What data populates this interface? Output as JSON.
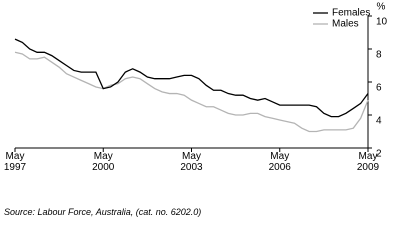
{
  "chart_data": {
    "type": "line",
    "y_label": "%",
    "categories": [
      "May 1997",
      null,
      null,
      null,
      null,
      null,
      null,
      null,
      null,
      null,
      null,
      null,
      "May 2000",
      null,
      null,
      null,
      null,
      null,
      null,
      null,
      null,
      null,
      null,
      null,
      "May 2003",
      null,
      null,
      null,
      null,
      null,
      null,
      null,
      null,
      null,
      null,
      null,
      "May 2006",
      null,
      null,
      null,
      null,
      null,
      null,
      null,
      null,
      null,
      null,
      null,
      "May 2009"
    ],
    "series": [
      {
        "name": "Females",
        "color": "#000000",
        "values": [
          8.6,
          8.4,
          8.0,
          7.8,
          7.8,
          7.6,
          7.3,
          7.0,
          6.7,
          6.6,
          6.6,
          6.6,
          5.6,
          5.7,
          6.0,
          6.6,
          6.8,
          6.6,
          6.3,
          6.2,
          6.2,
          6.2,
          6.3,
          6.4,
          6.4,
          6.2,
          5.8,
          5.5,
          5.5,
          5.3,
          5.2,
          5.2,
          5.0,
          4.9,
          5.0,
          4.8,
          4.6,
          4.6,
          4.6,
          4.6,
          4.6,
          4.5,
          4.1,
          3.9,
          3.9,
          4.1,
          4.4,
          4.7,
          5.3
        ]
      },
      {
        "name": "Males",
        "color": "#b4b4b4",
        "values": [
          7.8,
          7.7,
          7.4,
          7.4,
          7.5,
          7.2,
          6.9,
          6.5,
          6.3,
          6.1,
          5.9,
          5.7,
          5.6,
          5.8,
          5.9,
          6.2,
          6.3,
          6.2,
          5.9,
          5.6,
          5.4,
          5.3,
          5.3,
          5.2,
          4.9,
          4.7,
          4.5,
          4.5,
          4.3,
          4.1,
          4.0,
          4.0,
          4.1,
          4.1,
          3.9,
          3.8,
          3.7,
          3.6,
          3.5,
          3.2,
          3.0,
          3.0,
          3.1,
          3.1,
          3.1,
          3.1,
          3.2,
          3.8,
          4.9
        ]
      }
    ],
    "ylim": [
      2,
      10
    ],
    "yticks": [
      2,
      4,
      6,
      8,
      10
    ],
    "grid": false,
    "legend": "top-right",
    "source": "Source: Labour Force, Australia, (cat. no. 6202.0)"
  }
}
